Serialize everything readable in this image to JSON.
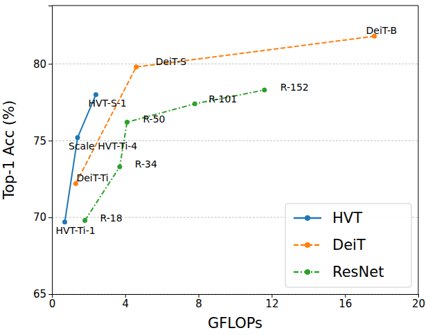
{
  "chart_data": {
    "type": "line",
    "x_label": "GFLOPs",
    "y_label": "Top-1 Acc (%)",
    "xlim": [
      0,
      20
    ],
    "xticks": [
      0,
      4,
      8,
      12,
      16,
      20
    ],
    "ylim": [
      65,
      83.8
    ],
    "yticks": [
      65,
      70,
      75,
      80
    ],
    "grid": "y",
    "legend": "lower right",
    "series": [
      {
        "name": "HVT",
        "color": "#1f77b4",
        "line_style": "solid",
        "marker": "circle",
        "x": [
          0.7,
          1.4,
          2.4
        ],
        "values": [
          69.7,
          75.2,
          78.0
        ],
        "labels": [
          "HVT-Ti-1",
          "Scale HVT-Ti-4",
          "HVT-S-1"
        ]
      },
      {
        "name": "DeiT",
        "color": "#ff7f0e",
        "line_style": "dashed",
        "marker": "circle",
        "x": [
          1.3,
          4.6,
          17.6
        ],
        "values": [
          72.2,
          79.8,
          81.8
        ],
        "labels": [
          "DeiT-Ti",
          "DeiT-S",
          "DeiT-B"
        ]
      },
      {
        "name": "ResNet",
        "color": "#2ca02c",
        "line_style": "dashdot",
        "marker": "circle",
        "x": [
          1.8,
          3.7,
          4.1,
          7.8,
          11.6
        ],
        "values": [
          69.8,
          73.3,
          76.2,
          77.4,
          78.3
        ],
        "labels": [
          "R-18",
          "R-34",
          "R-50",
          "R-101",
          "R-152"
        ]
      }
    ]
  }
}
